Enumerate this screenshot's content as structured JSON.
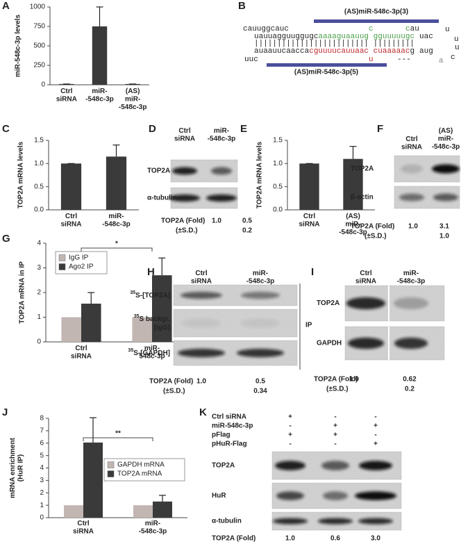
{
  "chart_data": [
    {
      "type": "bar",
      "label": "A",
      "ylabel": "miR-548c-3p levels",
      "categories": [
        "Ctrl\nsiRNA",
        "miR-\n-548c-3p",
        "(AS)\nmiR-\n-548c-3p"
      ],
      "values": [
        10,
        750,
        10
      ],
      "errors": [
        0,
        250,
        0
      ],
      "color": "#3a3a3a",
      "ylim": [
        0,
        1000
      ],
      "yticks": [
        0,
        250,
        500,
        750,
        1000
      ]
    },
    {
      "type": "bar",
      "label": "C",
      "ylabel": "TOP2A mRNA levels",
      "categories": [
        "Ctrl\nsiRNA",
        "miR-\n-548c-3p"
      ],
      "values": [
        1.0,
        1.15
      ],
      "errors": [
        0,
        0.25
      ],
      "color": "#3a3a3a",
      "ylim": [
        0,
        1.5
      ],
      "yticks": [
        {
          "value": 0,
          "label": "0.0"
        },
        0.5,
        {
          "value": 1,
          "label": "1.0"
        },
        1.5
      ]
    },
    {
      "type": "bar",
      "label": "E",
      "ylabel": "TOP2A mRNA levels",
      "categories": [
        "Ctrl\nsiRNA",
        "(AS)\nmiR-\n-548c-3p"
      ],
      "values": [
        1.0,
        1.1
      ],
      "errors": [
        0,
        0.27
      ],
      "color": "#3a3a3a",
      "ylim": [
        0,
        1.5
      ],
      "yticks": [
        {
          "value": 0,
          "label": "0.0"
        },
        0.5,
        {
          "value": 1,
          "label": "1.0"
        },
        1.5
      ]
    },
    {
      "type": "bar",
      "label": "G",
      "ylabel": "TOP2A mRNA in IP",
      "categories": [
        "Ctrl\nsiRNA",
        "miR-\n548c-3p"
      ],
      "series": [
        {
          "name": "IgG IP",
          "color": "#c2b6b2",
          "values": [
            1,
            1
          ]
        },
        {
          "name": "Ago2 IP",
          "color": "#3a3a3a",
          "values": [
            1.55,
            2.7
          ],
          "errors": [
            0.45,
            0.7
          ]
        }
      ],
      "ylim": [
        0,
        4
      ],
      "yticks": [
        0,
        1,
        2,
        3,
        4
      ],
      "annotation": "*"
    },
    {
      "type": "bar",
      "label": "J",
      "ylabel": "mRNA enrichment\n(HuR IP)",
      "categories": [
        "Ctrl\nsiRNA",
        "miR-\n-548c-3p"
      ],
      "series": [
        {
          "name": "GAPDH mRNA",
          "color": "#c2b6b2",
          "values": [
            1,
            1
          ]
        },
        {
          "name": "TOP2A mRNA",
          "color": "#3a3a3a",
          "values": [
            6.05,
            1.3
          ],
          "errors": [
            2,
            0.5
          ]
        }
      ],
      "ylim": [
        0,
        8
      ],
      "yticks": [
        0,
        1,
        2,
        3,
        4,
        5,
        6,
        7,
        8
      ],
      "annotation": "**"
    }
  ],
  "diagram": {
    "label": "B",
    "probe_top": "(AS)miR-548c-3p(3)",
    "probe_bottom": "(AS)miR-548c-3p(5)",
    "top": {
      "overhang": "cauuggcauc",
      "s1": "uauuagguuggugc",
      "s2": "aaaaguaauug",
      "s3": "gguuuuugc",
      "bulge1": "c",
      "bulge2": "c",
      "bulge3": "au",
      "end": "uac"
    },
    "pairs": "||||||||||||||||||||||||| |||||||||",
    "bottom": {
      "s1": "auaauucaacca",
      "s2": "cguuuucauuaac",
      "s3": "cuaaaaac",
      "s4": "g",
      "overhang": "uuc",
      "bulge": "u",
      "gap": "---",
      "end": "aug"
    },
    "loop": [
      "u",
      "u",
      "u",
      "c",
      "a"
    ]
  },
  "blots": [
    {
      "label": "D",
      "lanes": [
        "Ctrl\nsiRNA",
        "miR-\n-548c-3p"
      ],
      "rows": [
        "TOP2A",
        "α-tubulin"
      ],
      "quant_label": "TOP2A (Fold)",
      "fold": [
        "1.0",
        "0.5"
      ],
      "sd_label": "(±S.D.)",
      "sd": "0.2"
    },
    {
      "label": "F",
      "lanes": [
        "Ctrl\nsiRNA",
        "(AS)\nmiR-\n-548c-3p"
      ],
      "rows": [
        "TOP2A",
        "β-actin"
      ],
      "quant_label": "TOP2A (Fold)",
      "fold": [
        "1.0",
        "3.1"
      ],
      "sd_label": "(±S.D.)",
      "sd": "1.0"
    },
    {
      "label": "H",
      "lanes": [
        "Ctrl\nsiRNA",
        "miR-\n-548c-3p"
      ],
      "rows": [
        {
          "sup": "35",
          "text": "S-[TOP2A]"
        },
        {
          "sup": "35",
          "text": "S backgr.",
          "line2": "(IgG)"
        },
        {
          "sup": "35",
          "text": "S-[GAPDH]"
        }
      ],
      "side": "IP",
      "quant_label": "TOP2A (Fold)",
      "fold": [
        "1.0",
        "0.5"
      ],
      "sd_label": "(±S.D.)",
      "sd": "0.34"
    },
    {
      "label": "I",
      "lanes": [
        "Ctrl\nsiRNA",
        "miR-\n-548c-3p"
      ],
      "rows": [
        "TOP2A",
        "GAPDH"
      ],
      "quant_label": "TOP2A (Fold)",
      "fold": [
        "1.0",
        "0.62"
      ],
      "sd_label": "(±S.D.)",
      "sd": "0.2"
    },
    {
      "label": "K",
      "conditions": [
        {
          "name": "Ctrl siRNA",
          "signs": [
            "+",
            "-",
            "-"
          ]
        },
        {
          "name": "miR-548c-3p",
          "signs": [
            "-",
            "+",
            "+"
          ]
        },
        {
          "name": "pFlag",
          "signs": [
            "+",
            "+",
            "-"
          ]
        },
        {
          "name": "pHuR-Flag",
          "signs": [
            "-",
            "-",
            "+"
          ]
        }
      ],
      "rows": [
        "TOP2A",
        "HuR",
        "α-tubulin"
      ],
      "quant_label": "TOP2A (Fold)",
      "fold": [
        "1.0",
        "0.6",
        "3.0"
      ]
    }
  ]
}
